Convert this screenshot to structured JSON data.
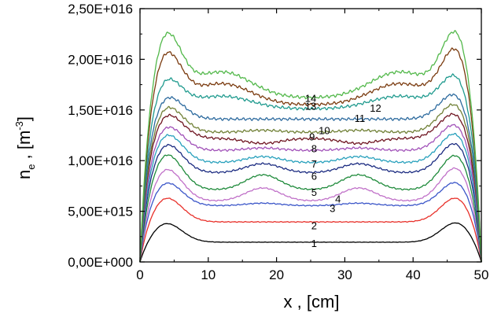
{
  "chart_data": {
    "type": "line",
    "xlabel": "x , [cm]",
    "ylabel": {
      "main": "n",
      "sub": "e",
      "unit_open": " , [m",
      "unit_sup": "-3",
      "unit_close": "]"
    },
    "xlim": [
      0,
      50
    ],
    "ylim": [
      0,
      2.5e+16
    ],
    "x_ticks": [
      0,
      10,
      20,
      30,
      40,
      50
    ],
    "x_tick_labels": [
      "0",
      "10",
      "20",
      "30",
      "40",
      "50"
    ],
    "y_ticks": [
      0,
      5000000000000000.0,
      1e+16,
      1.5e+16,
      2e+16,
      2.5e+16
    ],
    "y_tick_labels": [
      "0,00E+000",
      "5,00E+015",
      "1,00E+016",
      "1,50E+016",
      "2,00E+016",
      "2,50E+016"
    ],
    "grid": false,
    "series": [
      {
        "name": "1",
        "color": "#000000",
        "edge": 3950000000000000.0,
        "edgeR": 4050000000000000.0,
        "mid": 1950000000000000.0,
        "amp": 0.0,
        "label_at": [
          25.5,
          1880000000000000.0
        ]
      },
      {
        "name": "2",
        "color": "#e8302a",
        "edge": 6550000000000000.0,
        "edgeR": 6600000000000000.0,
        "mid": 3950000000000000.0,
        "amp": 0.0,
        "label_at": [
          25.5,
          3600000000000000.0
        ]
      },
      {
        "name": "3",
        "color": "#3a55c8",
        "edge": 8100000000000000.0,
        "edgeR": 8200000000000000.0,
        "mid": 5550000000000000.0,
        "amp": 250000000000000.0,
        "label_at": [
          28.2,
          5300000000000000.0
        ]
      },
      {
        "name": "4",
        "color": "#c070c8",
        "edge": 9500000000000000.0,
        "edgeR": 9700000000000000.0,
        "mid": 6000000000000000.0,
        "amp": 1300000000000000.0,
        "label_at": [
          29.0,
          6250000000000000.0
        ]
      },
      {
        "name": "5",
        "color": "#1e8a3a",
        "edge": 1.1e+16,
        "edgeR": 1.1e+16,
        "mid": 7100000000000000.0,
        "amp": 1500000000000000.0,
        "label_at": [
          25.5,
          6900000000000000.0
        ]
      },
      {
        "name": "6",
        "color": "#1a2a80",
        "edge": 1.2e+16,
        "edgeR": 1.22e+16,
        "mid": 8800000000000000.0,
        "amp": 900000000000000.0,
        "label_at": [
          25.5,
          8500000000000000.0
        ]
      },
      {
        "name": "7",
        "color": "#27a0bc",
        "edge": 1.3e+16,
        "edgeR": 1.32e+16,
        "mid": 9800000000000000.0,
        "amp": 600000000000000.0,
        "label_at": [
          25.5,
          9700000000000000.0
        ]
      },
      {
        "name": "8",
        "color": "#a050b8",
        "edge": 1.38e+16,
        "edgeR": 1.41e+16,
        "mid": 1.1e+16,
        "amp": 250000000000000.0,
        "label_at": [
          25.5,
          1.12e+16
        ]
      },
      {
        "name": "9",
        "color": "#6e1420",
        "edge": 1.5e+16,
        "edgeR": 1.52e+16,
        "mid": 1.22e+16,
        "amp": -500000000000000.0,
        "label_at": [
          25.2,
          1.24e+16
        ]
      },
      {
        "name": "10",
        "color": "#708036",
        "edge": 1.58e+16,
        "edgeR": 1.62e+16,
        "mid": 1.28e+16,
        "amp": 200000000000000.0,
        "label_at": [
          27.0,
          1.3e+16
        ]
      },
      {
        "name": "11",
        "color": "#2c6a9e",
        "edge": 1.68e+16,
        "edgeR": 1.72e+16,
        "mid": 1.41e+16,
        "amp": 0.0,
        "label_at": [
          32.2,
          1.42e+16
        ]
      },
      {
        "name": "12",
        "color": "#1f9a8e",
        "edge": 1.87e+16,
        "edgeR": 1.92e+16,
        "mid": 1.51e+16,
        "amp": 0.0,
        "label_at": [
          34.5,
          1.52e+16
        ]
      },
      {
        "name": "13",
        "color": "#7a3a0e",
        "edge": 2.15e+16,
        "edgeR": 2.2e+16,
        "mid": 1.55e+16,
        "amp": 0.0,
        "label_at": [
          25.0,
          1.54e+16
        ]
      },
      {
        "name": "14",
        "color": "#52b84a",
        "edge": 2.35e+16,
        "edgeR": 2.38e+16,
        "mid": 1.62e+16,
        "amp": 0.0,
        "label_at": [
          25.0,
          1.62e+16
        ]
      }
    ]
  }
}
